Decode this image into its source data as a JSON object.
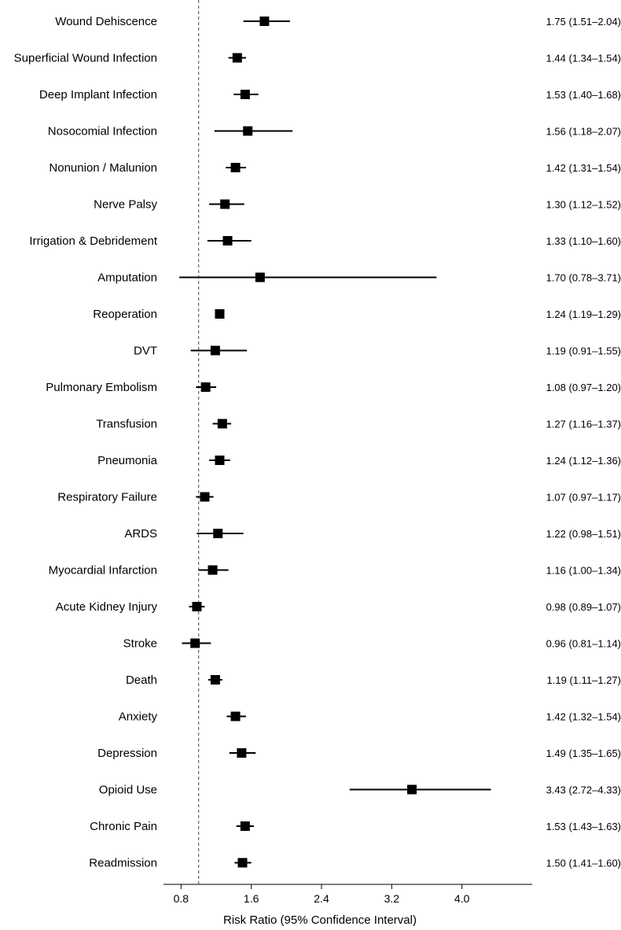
{
  "chart_data": {
    "type": "forest",
    "xlabel": "Risk Ratio (95% Confidence Interval)",
    "xlim": [
      0.6,
      4.8
    ],
    "x_ticks": [
      0.8,
      1.6,
      2.4,
      3.2,
      4.0
    ],
    "x_tick_labels": [
      "0.8",
      "1.6",
      "2.4",
      "3.2",
      "4.0"
    ],
    "reference_line": 1.0,
    "colors": {
      "marker": "#000000",
      "reference_line": "#666666"
    },
    "rows": [
      {
        "label": "Wound Dehiscence",
        "estimate": 1.75,
        "lower": 1.51,
        "upper": 2.04,
        "text": "1.75 (1.51–2.04)"
      },
      {
        "label": "Superficial Wound Infection",
        "estimate": 1.44,
        "lower": 1.34,
        "upper": 1.54,
        "text": "1.44 (1.34–1.54)"
      },
      {
        "label": "Deep Implant Infection",
        "estimate": 1.53,
        "lower": 1.4,
        "upper": 1.68,
        "text": "1.53 (1.40–1.68)"
      },
      {
        "label": "Nosocomial Infection",
        "estimate": 1.56,
        "lower": 1.18,
        "upper": 2.07,
        "text": "1.56 (1.18–2.07)"
      },
      {
        "label": "Nonunion / Malunion",
        "estimate": 1.42,
        "lower": 1.31,
        "upper": 1.54,
        "text": "1.42 (1.31–1.54)"
      },
      {
        "label": "Nerve Palsy",
        "estimate": 1.3,
        "lower": 1.12,
        "upper": 1.52,
        "text": "1.30 (1.12–1.52)"
      },
      {
        "label": "Irrigation & Debridement",
        "estimate": 1.33,
        "lower": 1.1,
        "upper": 1.6,
        "text": "1.33 (1.10–1.60)"
      },
      {
        "label": "Amputation",
        "estimate": 1.7,
        "lower": 0.78,
        "upper": 3.71,
        "text": "1.70 (0.78–3.71)"
      },
      {
        "label": "Reoperation",
        "estimate": 1.24,
        "lower": 1.19,
        "upper": 1.29,
        "text": "1.24 (1.19–1.29)"
      },
      {
        "label": "DVT",
        "estimate": 1.19,
        "lower": 0.91,
        "upper": 1.55,
        "text": "1.19 (0.91–1.55)"
      },
      {
        "label": "Pulmonary Embolism",
        "estimate": 1.08,
        "lower": 0.97,
        "upper": 1.2,
        "text": "1.08 (0.97–1.20)"
      },
      {
        "label": "Transfusion",
        "estimate": 1.27,
        "lower": 1.16,
        "upper": 1.37,
        "text": "1.27 (1.16–1.37)"
      },
      {
        "label": "Pneumonia",
        "estimate": 1.24,
        "lower": 1.12,
        "upper": 1.36,
        "text": "1.24 (1.12–1.36)"
      },
      {
        "label": "Respiratory Failure",
        "estimate": 1.07,
        "lower": 0.97,
        "upper": 1.17,
        "text": "1.07 (0.97–1.17)"
      },
      {
        "label": "ARDS",
        "estimate": 1.22,
        "lower": 0.98,
        "upper": 1.51,
        "text": "1.22 (0.98–1.51)"
      },
      {
        "label": "Myocardial Infarction",
        "estimate": 1.16,
        "lower": 1.0,
        "upper": 1.34,
        "text": "1.16 (1.00–1.34)"
      },
      {
        "label": "Acute Kidney Injury",
        "estimate": 0.98,
        "lower": 0.89,
        "upper": 1.07,
        "text": "0.98 (0.89–1.07)"
      },
      {
        "label": "Stroke",
        "estimate": 0.96,
        "lower": 0.81,
        "upper": 1.14,
        "text": "0.96 (0.81–1.14)"
      },
      {
        "label": "Death",
        "estimate": 1.19,
        "lower": 1.11,
        "upper": 1.27,
        "text": "1.19 (1.11–1.27)"
      },
      {
        "label": "Anxiety",
        "estimate": 1.42,
        "lower": 1.32,
        "upper": 1.54,
        "text": "1.42 (1.32–1.54)"
      },
      {
        "label": "Depression",
        "estimate": 1.49,
        "lower": 1.35,
        "upper": 1.65,
        "text": "1.49 (1.35–1.65)"
      },
      {
        "label": "Opioid Use",
        "estimate": 3.43,
        "lower": 2.72,
        "upper": 4.33,
        "text": "3.43 (2.72–4.33)"
      },
      {
        "label": "Chronic Pain",
        "estimate": 1.53,
        "lower": 1.43,
        "upper": 1.63,
        "text": "1.53 (1.43–1.63)"
      },
      {
        "label": "Readmission",
        "estimate": 1.5,
        "lower": 1.41,
        "upper": 1.6,
        "text": "1.50 (1.41–1.60)"
      }
    ]
  }
}
